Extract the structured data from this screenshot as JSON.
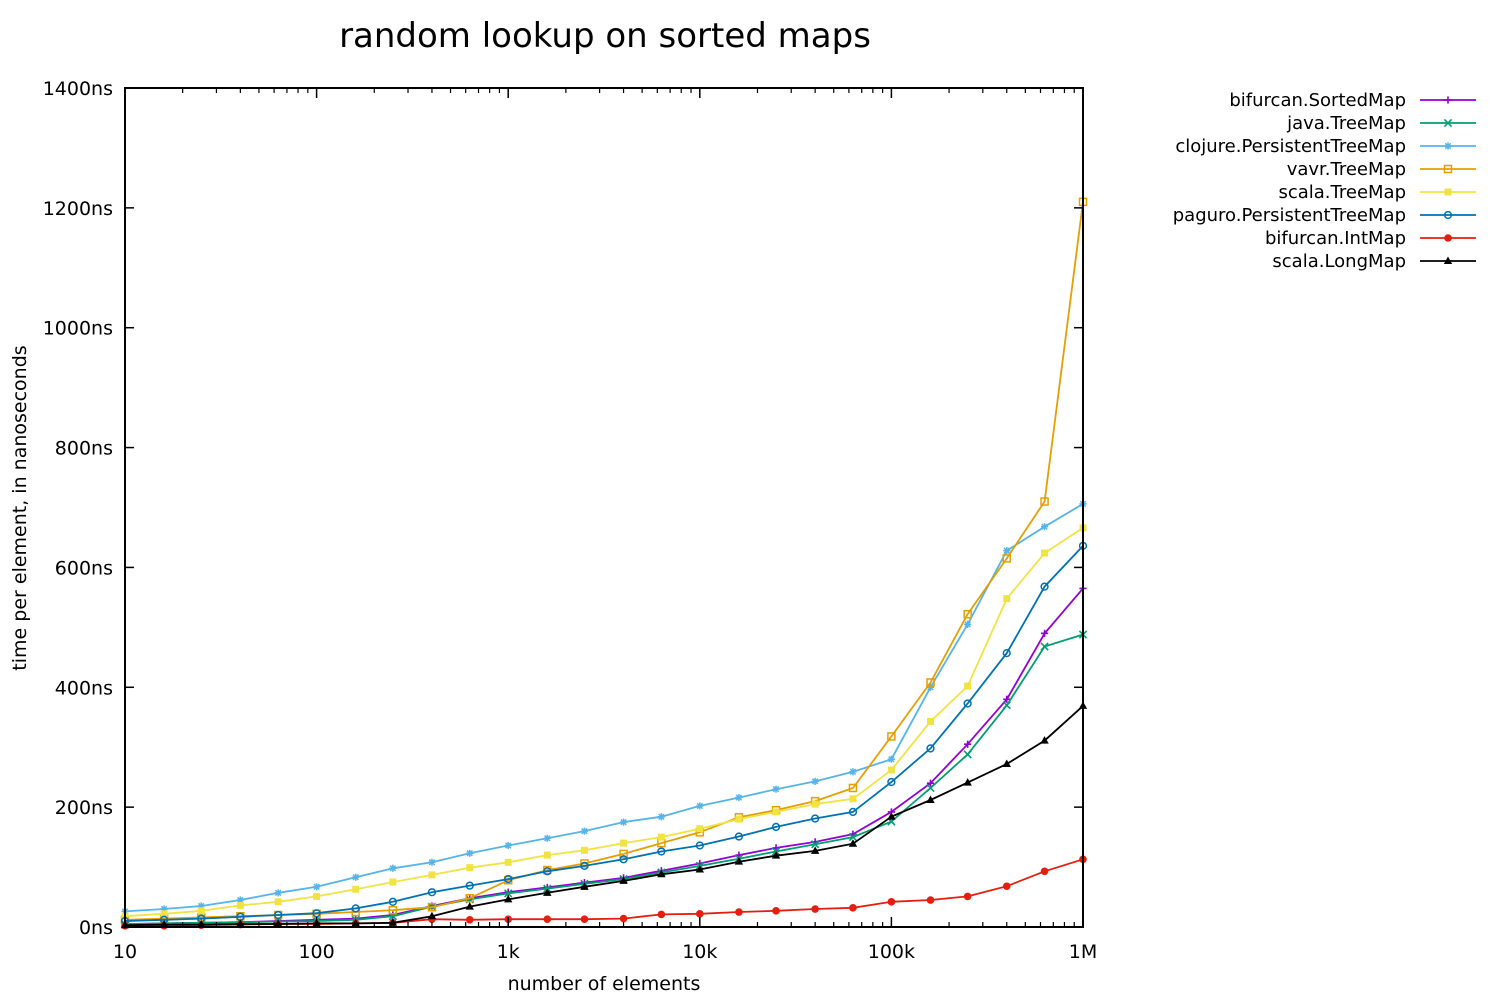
{
  "chart_data": {
    "type": "line",
    "title": "random lookup on sorted maps",
    "xlabel": "number of elements",
    "ylabel": "time per element, in nanoseconds",
    "x_scale": "log",
    "xlim": [
      10,
      1000000
    ],
    "ylim": [
      0,
      1400
    ],
    "x_ticks": [
      10,
      100,
      1000,
      10000,
      100000,
      1000000
    ],
    "x_tick_labels": [
      "10",
      "100",
      "1k",
      "10k",
      "100k",
      "1M"
    ],
    "y_ticks": [
      0,
      200,
      400,
      600,
      800,
      1000,
      1200,
      1400
    ],
    "y_tick_labels": [
      "0ns",
      "200ns",
      "400ns",
      "600ns",
      "800ns",
      "1000ns",
      "1200ns",
      "1400ns"
    ],
    "legend_position": "outside-top-right",
    "grid": false,
    "x": [
      10,
      16,
      25,
      40,
      63,
      100,
      160,
      250,
      400,
      630,
      1000,
      1600,
      2500,
      4000,
      6300,
      10000,
      16000,
      25000,
      40000,
      63000,
      100000,
      160000,
      250000,
      400000,
      630000,
      1000000
    ],
    "series": [
      {
        "name": "bifurcan.SortedMap",
        "color": "#9400d3",
        "marker": "plus",
        "values": [
          5,
          6,
          7,
          8,
          10,
          12,
          14,
          20,
          35,
          48,
          58,
          66,
          74,
          82,
          94,
          106,
          120,
          132,
          142,
          155,
          192,
          240,
          305,
          380,
          490,
          565
        ]
      },
      {
        "name": "java.TreeMap",
        "color": "#009e73",
        "marker": "cross",
        "values": [
          5,
          6,
          7,
          8,
          9,
          10,
          12,
          18,
          34,
          46,
          56,
          64,
          72,
          80,
          91,
          102,
          114,
          126,
          138,
          150,
          176,
          232,
          288,
          370,
          468,
          488
        ]
      },
      {
        "name": "clojure.PersistentTreeMap",
        "color": "#56b4e9",
        "marker": "star",
        "values": [
          26,
          30,
          35,
          45,
          57,
          67,
          83,
          98,
          108,
          123,
          136,
          148,
          160,
          175,
          184,
          202,
          216,
          230,
          243,
          259,
          280,
          400,
          505,
          628,
          668,
          706
        ]
      },
      {
        "name": "vavr.TreeMap",
        "color": "#e69f00",
        "marker": "square-open",
        "values": [
          12,
          14,
          16,
          18,
          20,
          22,
          25,
          28,
          33,
          48,
          78,
          95,
          106,
          122,
          140,
          158,
          183,
          195,
          210,
          232,
          318,
          408,
          522,
          615,
          710,
          1210
        ]
      },
      {
        "name": "scala.TreeMap",
        "color": "#f0e442",
        "marker": "square-filled",
        "values": [
          18,
          22,
          27,
          36,
          42,
          51,
          63,
          75,
          87,
          99,
          108,
          120,
          128,
          140,
          150,
          164,
          180,
          192,
          205,
          214,
          262,
          343,
          402,
          548,
          624,
          666
        ]
      },
      {
        "name": "paguro.PersistentTreeMap",
        "color": "#0072b2",
        "marker": "circle-open",
        "values": [
          10,
          12,
          14,
          17,
          20,
          23,
          31,
          42,
          58,
          69,
          80,
          93,
          102,
          113,
          126,
          136,
          151,
          167,
          181,
          192,
          242,
          298,
          373,
          457,
          568,
          636
        ]
      },
      {
        "name": "bifurcan.IntMap",
        "color": "#e51e10",
        "marker": "circle-filled",
        "values": [
          2,
          2,
          3,
          4,
          5,
          5,
          6,
          7,
          13,
          12,
          13,
          13,
          13,
          14,
          21,
          22,
          25,
          27,
          30,
          32,
          42,
          45,
          51,
          68,
          93,
          113
        ]
      },
      {
        "name": "scala.LongMap",
        "color": "#000000",
        "marker": "triangle",
        "values": [
          3,
          4,
          4,
          5,
          5,
          6,
          6,
          7,
          18,
          34,
          46,
          57,
          67,
          77,
          88,
          96,
          109,
          119,
          127,
          139,
          184,
          212,
          241,
          272,
          311,
          369
        ]
      }
    ]
  }
}
